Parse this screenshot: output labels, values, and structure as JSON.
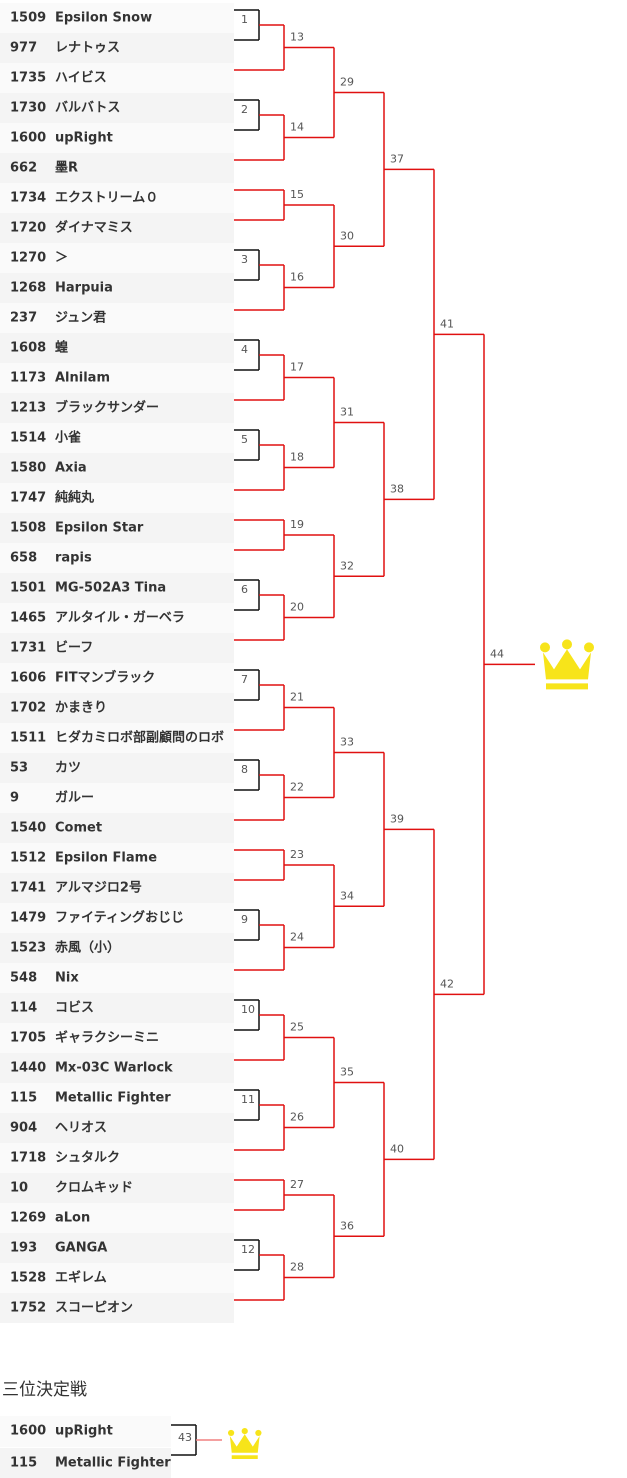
{
  "bracket": {
    "entries": [
      {
        "rating": 1509,
        "name": "Epsilon Snow"
      },
      {
        "rating": 977,
        "name": "レナトゥス"
      },
      {
        "rating": 1735,
        "name": "ハイビス"
      },
      {
        "rating": 1730,
        "name": "バルバトス"
      },
      {
        "rating": 1600,
        "name": "upRight"
      },
      {
        "rating": 662,
        "name": "墨R"
      },
      {
        "rating": 1734,
        "name": "エクストリーム０"
      },
      {
        "rating": 1720,
        "name": "ダイナマミス"
      },
      {
        "rating": 1270,
        "name": "＞"
      },
      {
        "rating": 1268,
        "name": "Harpuia"
      },
      {
        "rating": 237,
        "name": "ジュン君"
      },
      {
        "rating": 1608,
        "name": "蝗"
      },
      {
        "rating": 1173,
        "name": "Alnilam"
      },
      {
        "rating": 1213,
        "name": "ブラックサンダー"
      },
      {
        "rating": 1514,
        "name": "小雀"
      },
      {
        "rating": 1580,
        "name": "Axia"
      },
      {
        "rating": 1747,
        "name": "純純丸"
      },
      {
        "rating": 1508,
        "name": "Epsilon Star"
      },
      {
        "rating": 658,
        "name": "rapis"
      },
      {
        "rating": 1501,
        "name": "MG-502A3 Tina"
      },
      {
        "rating": 1465,
        "name": "アルタイル・ガーベラ"
      },
      {
        "rating": 1731,
        "name": "ビーフ"
      },
      {
        "rating": 1606,
        "name": "FITマンブラック"
      },
      {
        "rating": 1702,
        "name": "かまきり"
      },
      {
        "rating": 1511,
        "name": "ヒダカミロボ部副顧問のロボ"
      },
      {
        "rating": 53,
        "name": "カツ"
      },
      {
        "rating": 9,
        "name": "ガルー"
      },
      {
        "rating": 1540,
        "name": "Comet"
      },
      {
        "rating": 1512,
        "name": "Epsilon Flame"
      },
      {
        "rating": 1741,
        "name": "アルマジロ2号"
      },
      {
        "rating": 1479,
        "name": "ファイティングおじじ"
      },
      {
        "rating": 1523,
        "name": "赤風（小）"
      },
      {
        "rating": 548,
        "name": "Nix"
      },
      {
        "rating": 114,
        "name": "コビス"
      },
      {
        "rating": 1705,
        "name": "ギャラクシーミニ"
      },
      {
        "rating": 1440,
        "name": "Mx-03C Warlock"
      },
      {
        "rating": 115,
        "name": "Metallic Fighter"
      },
      {
        "rating": 904,
        "name": "ヘリオス"
      },
      {
        "rating": 1718,
        "name": "シュタルク"
      },
      {
        "rating": 10,
        "name": "クロムキッド"
      },
      {
        "rating": 1269,
        "name": "aLon"
      },
      {
        "rating": 193,
        "name": "GANGA"
      },
      {
        "rating": 1528,
        "name": "エギレム"
      },
      {
        "rating": 1752,
        "name": "スコーピオン"
      }
    ],
    "matches": [
      1,
      2,
      3,
      4,
      5,
      6,
      7,
      8,
      9,
      10,
      11,
      12,
      13,
      14,
      15,
      16,
      17,
      18,
      19,
      20,
      21,
      22,
      23,
      24,
      25,
      26,
      27,
      28,
      29,
      30,
      31,
      32,
      33,
      34,
      35,
      36,
      37,
      38,
      39,
      40,
      41,
      42,
      44
    ]
  },
  "third_place": {
    "title": "三位決定戦",
    "entries": [
      {
        "rating": 1600,
        "name": "upRight"
      },
      {
        "rating": 115,
        "name": "Metallic Fighter"
      }
    ],
    "match": 43
  }
}
